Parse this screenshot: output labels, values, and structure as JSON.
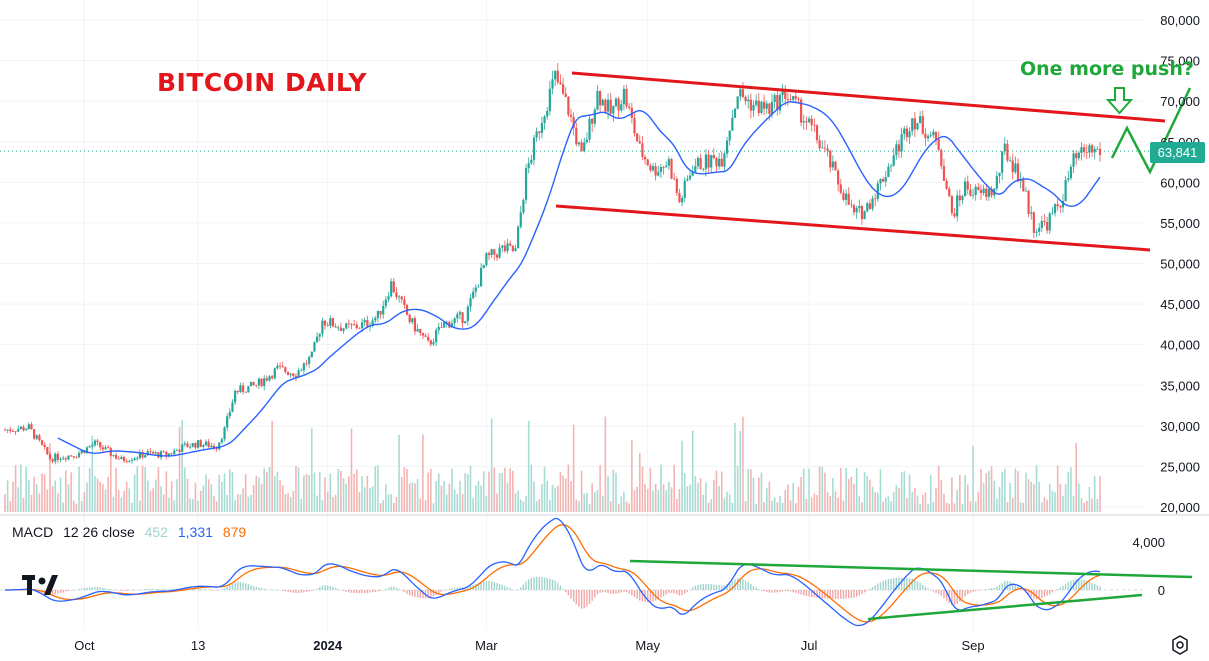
{
  "chart_data": [
    {
      "type": "candlestick",
      "title": "BITCOIN DAILY",
      "y_ticks": [
        "80,000",
        "75,000",
        "70,000",
        "65,000",
        "60,000",
        "55,000",
        "50,000",
        "45,000",
        "40,000",
        "35,000",
        "30,000",
        "25,000",
        "20,000"
      ],
      "ylim": [
        20000,
        80000
      ],
      "x_ticks": [
        "Oct",
        "13",
        "2024",
        "Mar",
        "May",
        "Jul",
        "Sep"
      ],
      "last_price_label": "63,841",
      "last_price": 63841,
      "annotations": {
        "text": "One more push?"
      },
      "price_path": [
        {
          "t": "2023-09-01",
          "v": 29500
        },
        {
          "t": "2023-09-10",
          "v": 29800
        },
        {
          "t": "2023-09-18",
          "v": 26000
        },
        {
          "t": "2023-09-28",
          "v": 26500
        },
        {
          "t": "2023-10-05",
          "v": 27800
        },
        {
          "t": "2023-10-15",
          "v": 25800
        },
        {
          "t": "2023-10-25",
          "v": 26600
        },
        {
          "t": "2023-11-01",
          "v": 26400
        },
        {
          "t": "2023-11-08",
          "v": 27500
        },
        {
          "t": "2023-11-13",
          "v": 27800
        },
        {
          "t": "2023-11-20",
          "v": 27500
        },
        {
          "t": "2023-11-23",
          "v": 29500
        },
        {
          "t": "2023-11-27",
          "v": 34200
        },
        {
          "t": "2023-12-05",
          "v": 35000
        },
        {
          "t": "2023-12-13",
          "v": 37000
        },
        {
          "t": "2023-12-20",
          "v": 36500
        },
        {
          "t": "2023-12-26",
          "v": 38500
        },
        {
          "t": "2023-12-30",
          "v": 43000
        },
        {
          "t": "2024-01-08",
          "v": 42000
        },
        {
          "t": "2024-01-15",
          "v": 42500
        },
        {
          "t": "2024-01-20",
          "v": 43500
        },
        {
          "t": "2024-01-25",
          "v": 47500
        },
        {
          "t": "2024-02-01",
          "v": 43000
        },
        {
          "t": "2024-02-08",
          "v": 40000
        },
        {
          "t": "2024-02-14",
          "v": 42500
        },
        {
          "t": "2024-02-22",
          "v": 43500
        },
        {
          "t": "2024-03-01",
          "v": 50500
        },
        {
          "t": "2024-03-07",
          "v": 51800
        },
        {
          "t": "2024-03-12",
          "v": 51500
        },
        {
          "t": "2024-03-16",
          "v": 61000
        },
        {
          "t": "2024-03-22",
          "v": 68000
        },
        {
          "t": "2024-03-27",
          "v": 73000
        },
        {
          "t": "2024-04-01",
          "v": 69000
        },
        {
          "t": "2024-04-06",
          "v": 63000
        },
        {
          "t": "2024-04-12",
          "v": 71000
        },
        {
          "t": "2024-04-17",
          "v": 68500
        },
        {
          "t": "2024-04-22",
          "v": 71000
        },
        {
          "t": "2024-04-28",
          "v": 64000
        },
        {
          "t": "2024-05-03",
          "v": 61500
        },
        {
          "t": "2024-05-09",
          "v": 62500
        },
        {
          "t": "2024-05-13",
          "v": 57500
        },
        {
          "t": "2024-05-18",
          "v": 62000
        },
        {
          "t": "2024-05-23",
          "v": 62500
        },
        {
          "t": "2024-05-29",
          "v": 63000
        },
        {
          "t": "2024-06-04",
          "v": 71000
        },
        {
          "t": "2024-06-10",
          "v": 69500
        },
        {
          "t": "2024-06-16",
          "v": 69000
        },
        {
          "t": "2024-06-22",
          "v": 71000
        },
        {
          "t": "2024-06-27",
          "v": 69000
        },
        {
          "t": "2024-07-03",
          "v": 66000
        },
        {
          "t": "2024-07-08",
          "v": 63000
        },
        {
          "t": "2024-07-12",
          "v": 60000
        },
        {
          "t": "2024-07-18",
          "v": 56000
        },
        {
          "t": "2024-07-22",
          "v": 56500
        },
        {
          "t": "2024-07-28",
          "v": 60000
        },
        {
          "t": "2024-08-03",
          "v": 64000
        },
        {
          "t": "2024-08-09",
          "v": 68000
        },
        {
          "t": "2024-08-14",
          "v": 66500
        },
        {
          "t": "2024-08-19",
          "v": 64500
        },
        {
          "t": "2024-08-24",
          "v": 56000
        },
        {
          "t": "2024-08-29",
          "v": 59500
        },
        {
          "t": "2024-09-03",
          "v": 58500
        },
        {
          "t": "2024-09-09",
          "v": 59000
        },
        {
          "t": "2024-09-13",
          "v": 64000
        },
        {
          "t": "2024-09-19",
          "v": 60500
        },
        {
          "t": "2024-09-24",
          "v": 54500
        },
        {
          "t": "2024-09-29",
          "v": 55000
        },
        {
          "t": "2024-10-04",
          "v": 57500
        },
        {
          "t": "2024-10-09",
          "v": 62500
        },
        {
          "t": "2024-10-14",
          "v": 64000
        },
        {
          "t": "2024-10-19",
          "v": 63841
        }
      ]
    },
    {
      "type": "macd",
      "legend": {
        "name": "MACD",
        "params": "12 26 close",
        "histogram": "452",
        "macd": "1,331",
        "signal": "879"
      },
      "y_ticks": [
        "4,000",
        "0"
      ],
      "colors": {
        "macd": "#2962ff",
        "signal": "#ff6d00",
        "hist_up": "#9fd4cc",
        "hist_down": "#f0a7a7"
      }
    }
  ],
  "colors": {
    "channel": "#e3161b",
    "trend": "#1fa83a",
    "ma": "#2962ff",
    "up": "#26a69a",
    "down": "#ef5350",
    "price_tag": "#22ab94"
  }
}
